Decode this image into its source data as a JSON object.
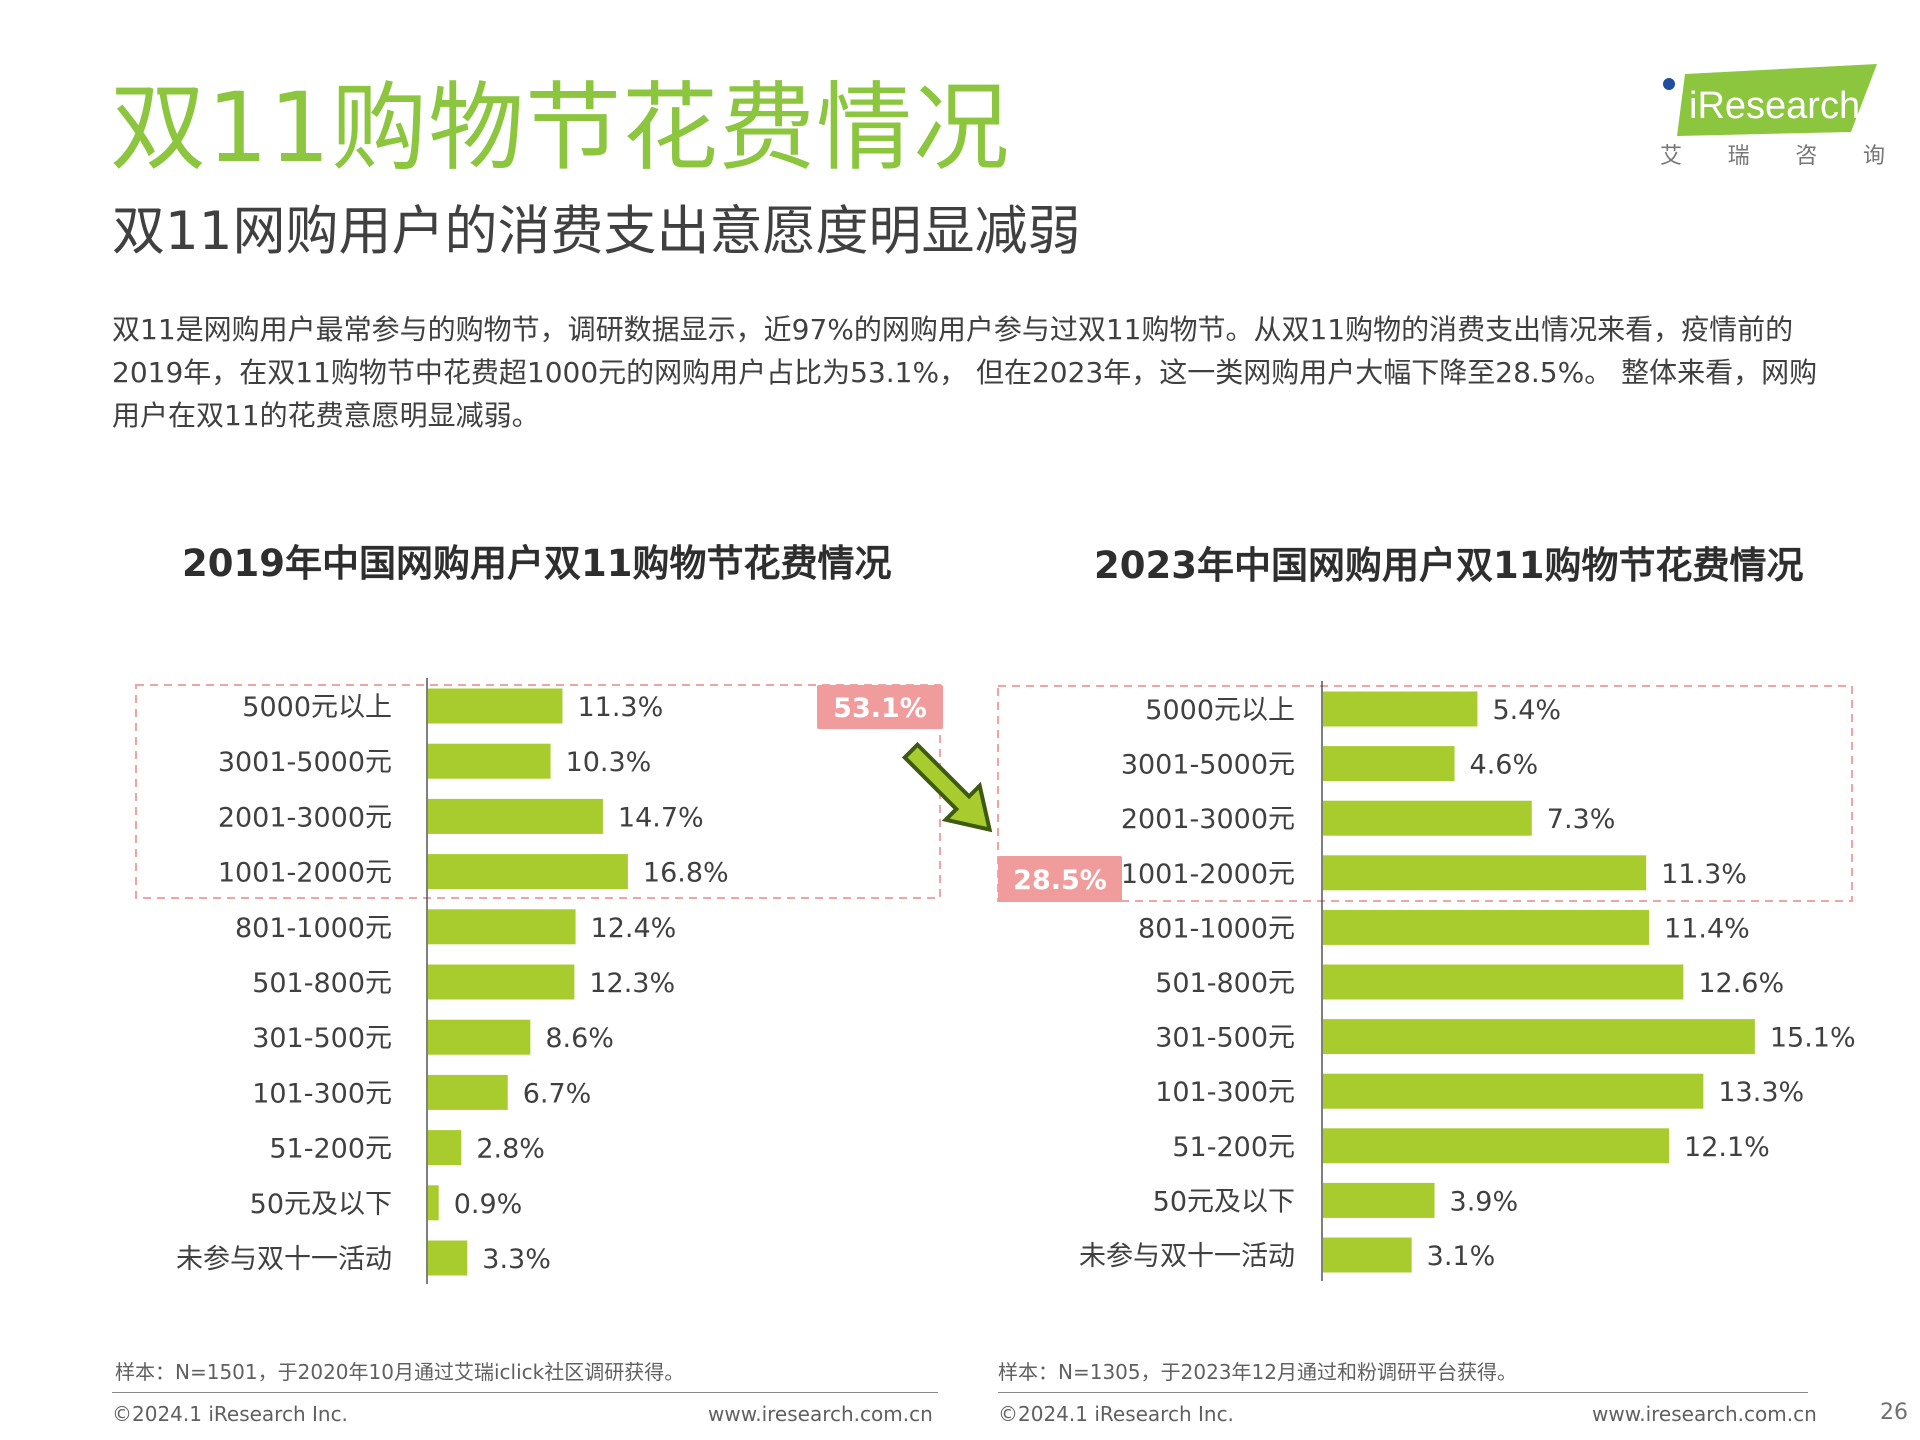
{
  "header": {
    "title": "双11购物节花费情况",
    "subtitle": "双11网购用户的消费支出意愿度明显减弱",
    "intro": "双11是网购用户最常参与的购物节，调研数据显示，近97%的网购用户参与过双11购物节。从双11购物的消费支出情况来看，疫情前的2019年，在双11购物节中花费超1000元的网购用户占比为53.1%， 但在2023年，这一类网购用户大幅下降至28.5%。 整体来看，网购用户在双11的花费意愿明显减弱。"
  },
  "logo": {
    "brand": "iResearch",
    "sub": [
      "艾",
      "瑞",
      "咨",
      "询"
    ]
  },
  "colors": {
    "accent": "#8cc63f",
    "bar": "#a8cc2e",
    "highlight": "#f19c9c",
    "dash": "#f0a5a5"
  },
  "chart_data": [
    {
      "type": "bar",
      "orientation": "horizontal",
      "title": "2019年中国网购用户双11购物节花费情况",
      "categories": [
        "5000元以上",
        "3001-5000元",
        "2001-3000元",
        "1001-2000元",
        "801-1000元",
        "501-800元",
        "301-500元",
        "101-300元",
        "51-200元",
        "50元及以下",
        "未参与双十一活动"
      ],
      "values": [
        11.3,
        10.3,
        14.7,
        16.8,
        12.4,
        12.3,
        8.6,
        6.7,
        2.8,
        0.9,
        3.3
      ],
      "value_labels": [
        "11.3%",
        "10.3%",
        "14.7%",
        "16.8%",
        "12.4%",
        "12.3%",
        "8.6%",
        "6.7%",
        "2.8%",
        "0.9%",
        "3.3%"
      ],
      "highlight": {
        "label": "53.1%",
        "group_count": 4
      },
      "note": "样本：N=1501，于2020年10月通过艾瑞iclick社区调研获得。"
    },
    {
      "type": "bar",
      "orientation": "horizontal",
      "title": "2023年中国网购用户双11购物节花费情况",
      "categories": [
        "5000元以上",
        "3001-5000元",
        "2001-3000元",
        "1001-2000元",
        "801-1000元",
        "501-800元",
        "301-500元",
        "101-300元",
        "51-200元",
        "50元及以下",
        "未参与双十一活动"
      ],
      "values": [
        5.4,
        4.6,
        7.3,
        11.3,
        11.4,
        12.6,
        15.1,
        13.3,
        12.1,
        3.9,
        3.1
      ],
      "value_labels": [
        "5.4%",
        "4.6%",
        "7.3%",
        "11.3%",
        "11.4%",
        "12.6%",
        "15.1%",
        "13.3%",
        "12.1%",
        "3.9%",
        "3.1%"
      ],
      "highlight": {
        "label": "28.5%",
        "group_count": 4
      },
      "note": "样本：N=1305，于2023年12月通过和粉调研平台获得。"
    }
  ],
  "footer": {
    "copyright": "©2024.1 iResearch Inc.",
    "url": "www.iresearch.com.cn",
    "page": "26"
  }
}
